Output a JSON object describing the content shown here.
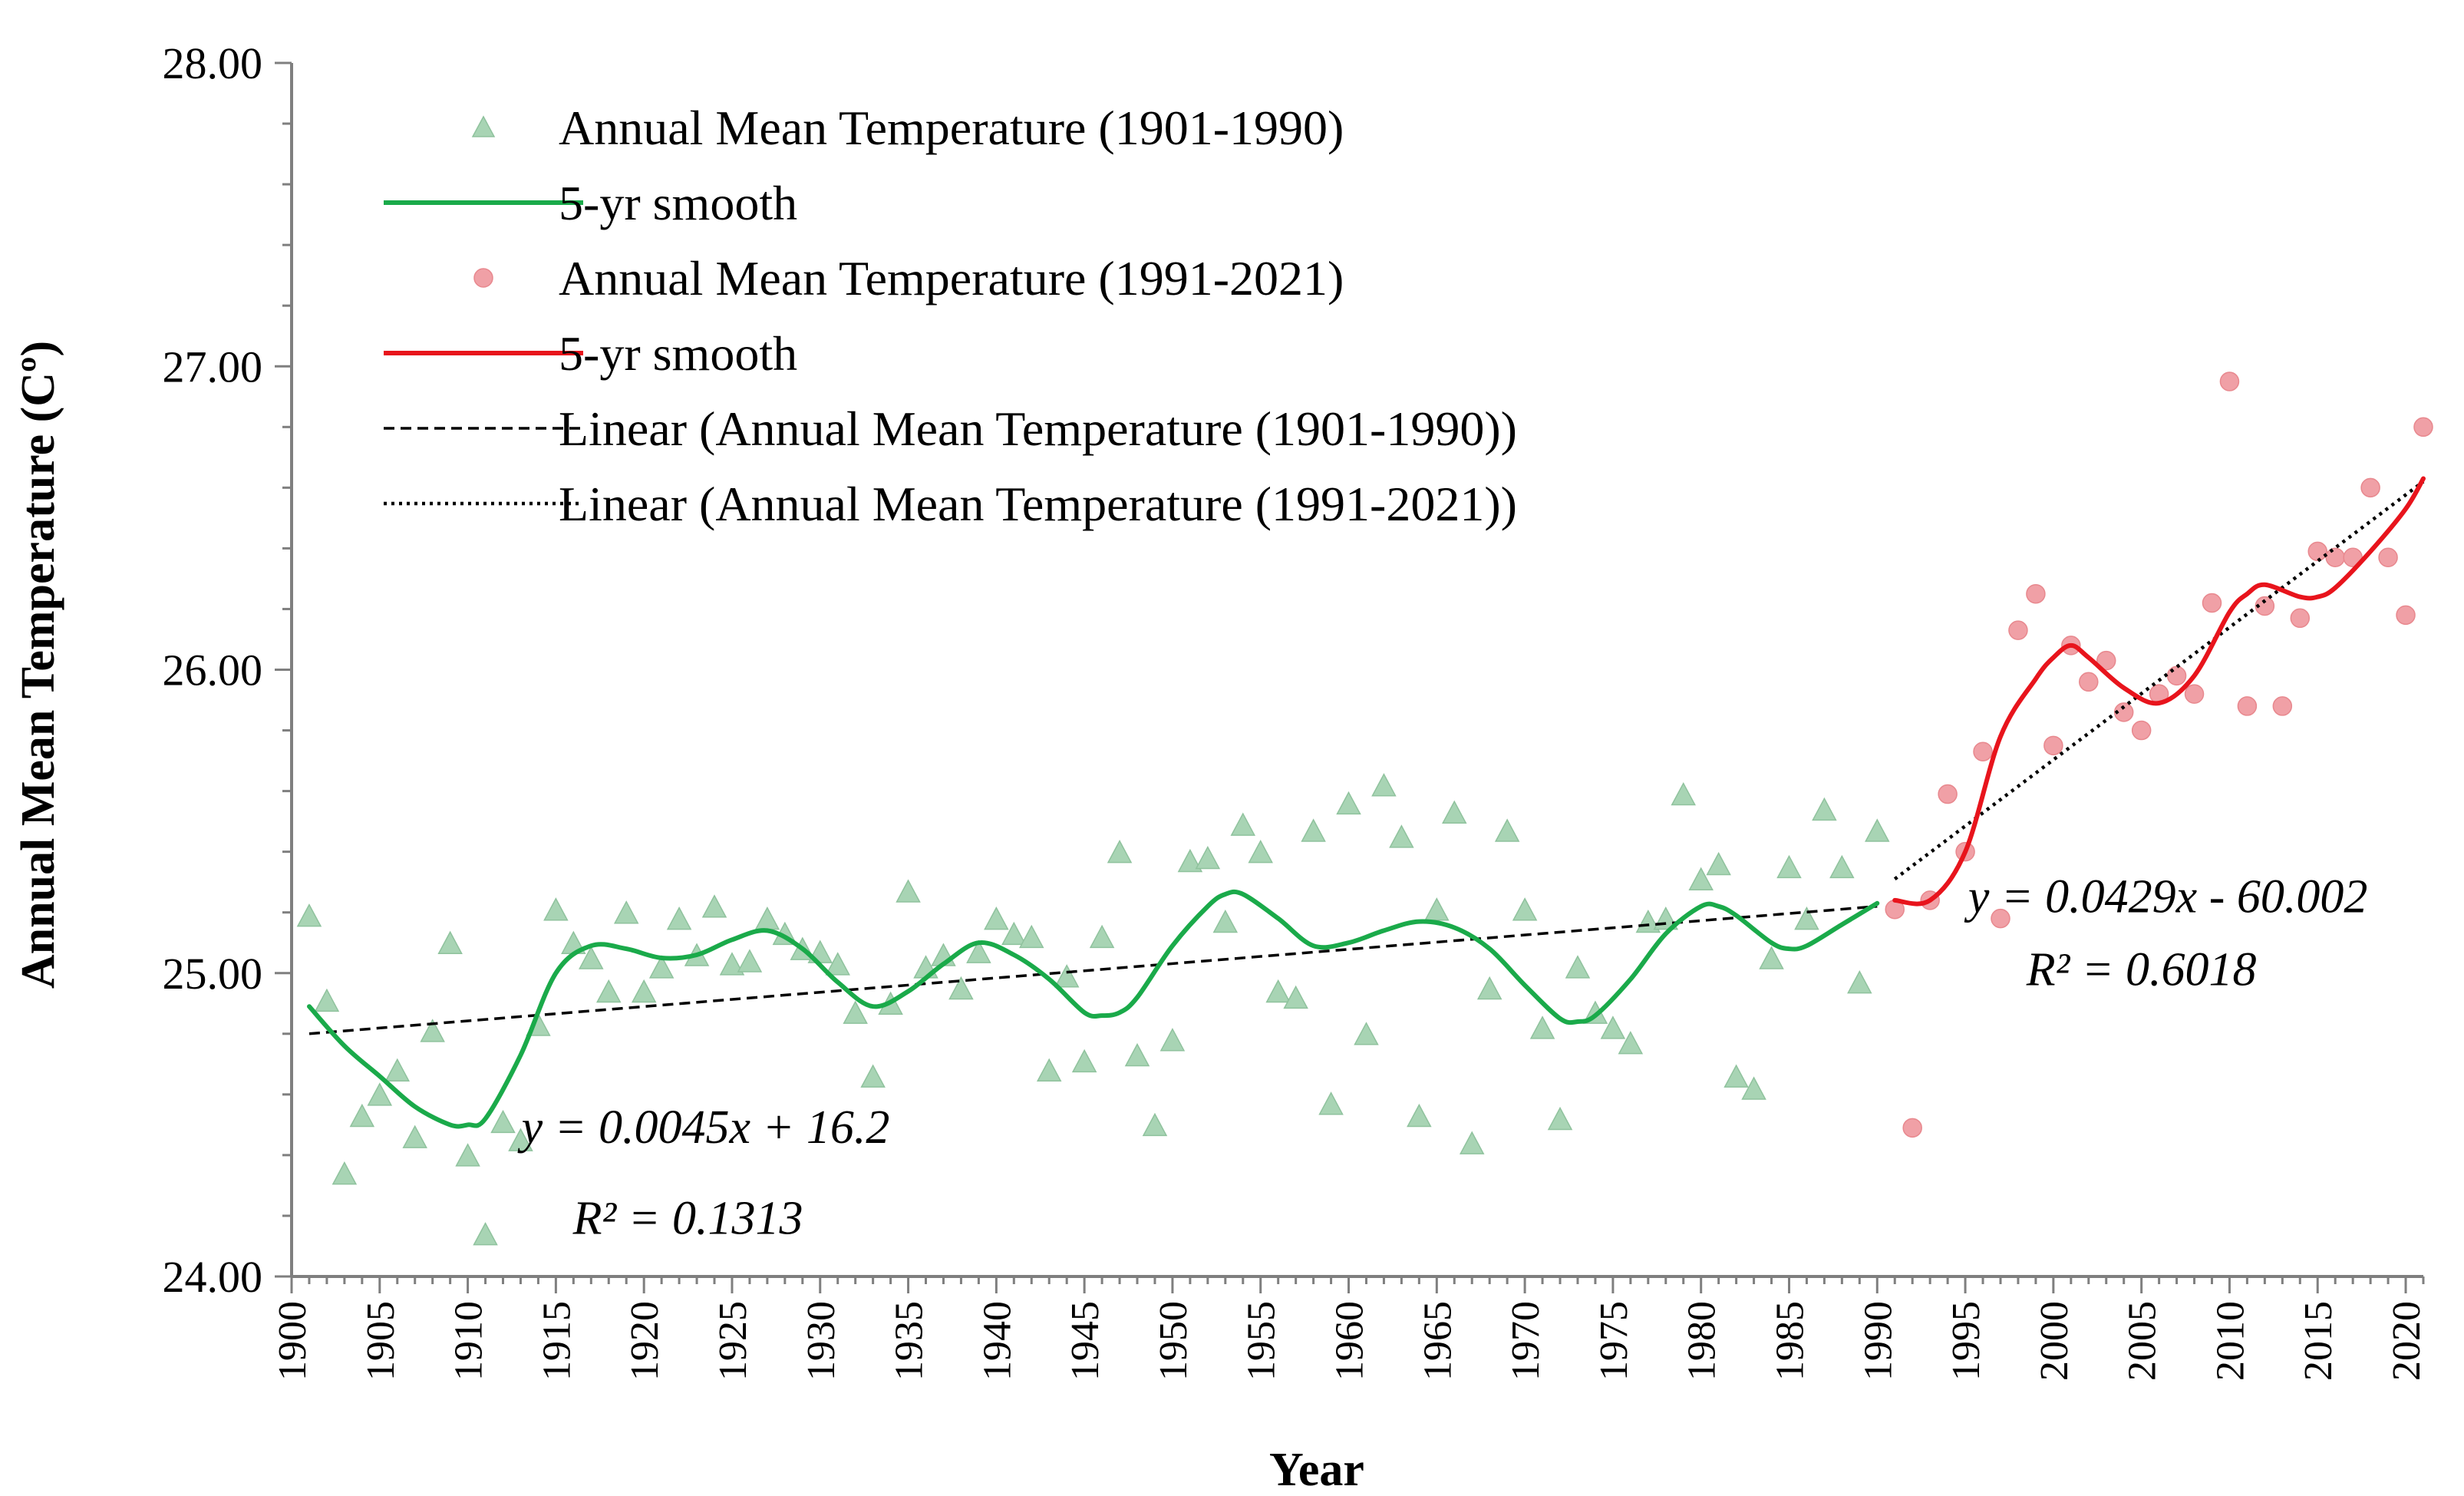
{
  "chart_data": {
    "type": "scatter",
    "xlabel": "Year",
    "ylabel": "Annual Mean Temperature (Cº)",
    "xlim": [
      1900,
      2021
    ],
    "ylim": [
      24.0,
      28.0
    ],
    "x_ticks": [
      "1900",
      "1905",
      "1910",
      "1915",
      "1920",
      "1925",
      "1930",
      "1935",
      "1940",
      "1945",
      "1950",
      "1955",
      "1960",
      "1965",
      "1970",
      "1975",
      "1980",
      "1985",
      "1990",
      "1995",
      "2000",
      "2005",
      "2010",
      "2015",
      "2020"
    ],
    "y_ticks": [
      "24.00",
      "25.00",
      "26.00",
      "27.00",
      "28.00"
    ],
    "legend": {
      "position": "top-left",
      "entries": [
        "Annual Mean Temperature (1901-1990)",
        "5-yr smooth",
        "Annual Mean Temperature (1991-2021)",
        "5-yr smooth",
        "Linear (Annual Mean Temperature (1901-1990))",
        "Linear (Annual Mean Temperature (1991-2021))"
      ]
    },
    "colors": {
      "green_marker": "#a8d4b4",
      "green_line": "#1aaa4a",
      "red_marker": "#f0a0a6",
      "red_line": "#e8141c",
      "trend": "#000000"
    },
    "series": [
      {
        "name": "Annual Mean Temperature (1901-1990)",
        "marker": "triangle",
        "x": [
          1901,
          1902,
          1903,
          1904,
          1905,
          1906,
          1907,
          1908,
          1909,
          1910,
          1911,
          1912,
          1913,
          1914,
          1915,
          1916,
          1917,
          1918,
          1919,
          1920,
          1921,
          1922,
          1923,
          1924,
          1925,
          1926,
          1927,
          1928,
          1929,
          1930,
          1931,
          1932,
          1933,
          1934,
          1935,
          1936,
          1937,
          1938,
          1939,
          1940,
          1941,
          1942,
          1943,
          1944,
          1945,
          1946,
          1947,
          1948,
          1949,
          1950,
          1951,
          1952,
          1953,
          1954,
          1955,
          1956,
          1957,
          1958,
          1959,
          1960,
          1961,
          1962,
          1963,
          1964,
          1965,
          1966,
          1967,
          1968,
          1969,
          1970,
          1971,
          1972,
          1973,
          1974,
          1975,
          1976,
          1977,
          1978,
          1979,
          1980,
          1981,
          1982,
          1983,
          1984,
          1985,
          1986,
          1987,
          1988,
          1989,
          1990
        ],
        "y": [
          25.19,
          24.91,
          24.34,
          24.53,
          24.6,
          24.68,
          24.46,
          24.81,
          25.1,
          24.4,
          24.14,
          24.51,
          24.45,
          24.83,
          25.21,
          25.1,
          25.05,
          24.94,
          25.2,
          24.94,
          25.02,
          25.18,
          25.06,
          25.22,
          25.03,
          25.04,
          25.18,
          25.13,
          25.08,
          25.07,
          25.03,
          24.87,
          24.66,
          24.9,
          25.27,
          25.02,
          25.06,
          24.95,
          25.07,
          25.18,
          25.13,
          25.12,
          24.68,
          24.99,
          24.71,
          25.12,
          25.4,
          24.73,
          24.5,
          24.78,
          25.37,
          25.38,
          25.17,
          25.49,
          25.4,
          24.94,
          24.92,
          25.47,
          24.57,
          25.56,
          24.8,
          25.62,
          25.45,
          24.53,
          25.21,
          25.53,
          24.44,
          24.95,
          25.47,
          25.21,
          24.82,
          24.52,
          25.02,
          24.87,
          24.82,
          24.77,
          25.17,
          25.18,
          25.59,
          25.31,
          25.36,
          24.66,
          24.62,
          25.05,
          25.35,
          25.18,
          25.54,
          25.35,
          24.97,
          25.47
        ]
      },
      {
        "name": "5-yr smooth",
        "x": [
          1901,
          1903,
          1905,
          1907,
          1909,
          1910,
          1911,
          1913,
          1915,
          1917,
          1919,
          1921,
          1923,
          1925,
          1927,
          1929,
          1931,
          1933,
          1935,
          1937,
          1939,
          1941,
          1943,
          1945,
          1946,
          1947,
          1948,
          1950,
          1952,
          1953,
          1954,
          1956,
          1958,
          1960,
          1962,
          1964,
          1966,
          1968,
          1970,
          1972,
          1973,
          1974,
          1976,
          1978,
          1980,
          1981,
          1982,
          1984,
          1985,
          1986,
          1988,
          1990
        ],
        "y": [
          24.89,
          24.76,
          24.66,
          24.56,
          24.5,
          24.5,
          24.52,
          24.73,
          25.0,
          25.09,
          25.08,
          25.05,
          25.06,
          25.11,
          25.14,
          25.08,
          24.97,
          24.89,
          24.94,
          25.03,
          25.1,
          25.06,
          24.98,
          24.87,
          24.86,
          24.87,
          24.92,
          25.09,
          25.22,
          25.26,
          25.26,
          25.18,
          25.09,
          25.1,
          25.14,
          25.17,
          25.15,
          25.08,
          24.96,
          24.85,
          24.84,
          24.86,
          24.98,
          25.13,
          25.22,
          25.22,
          25.19,
          25.1,
          25.08,
          25.09,
          25.16,
          25.23
        ]
      },
      {
        "name": "Annual Mean Temperature (1991-2021)",
        "marker": "circle",
        "x": [
          1991,
          1992,
          1993,
          1994,
          1995,
          1996,
          1997,
          1998,
          1999,
          2000,
          2001,
          2002,
          2003,
          2004,
          2005,
          2006,
          2007,
          2008,
          2009,
          2010,
          2011,
          2012,
          2013,
          2014,
          2015,
          2016,
          2017,
          2018,
          2019,
          2020,
          2021
        ],
        "y": [
          25.21,
          24.49,
          25.24,
          25.59,
          25.4,
          25.73,
          25.18,
          26.13,
          26.25,
          25.75,
          26.08,
          25.96,
          26.03,
          25.86,
          25.8,
          25.92,
          25.98,
          25.92,
          26.22,
          26.95,
          25.88,
          26.21,
          25.88,
          26.17,
          26.39,
          26.37,
          26.37,
          26.6,
          26.37,
          26.18,
          26.8
        ]
      },
      {
        "name": "5-yr smooth",
        "x": [
          1991,
          1993,
          1995,
          1997,
          1999,
          2000,
          2001,
          2002,
          2004,
          2006,
          2008,
          2010,
          2011,
          2012,
          2014,
          2015,
          2016,
          2018,
          2020,
          2021
        ],
        "y": [
          25.24,
          25.24,
          25.4,
          25.78,
          25.97,
          26.04,
          26.08,
          26.04,
          25.94,
          25.89,
          25.98,
          26.19,
          26.25,
          26.28,
          26.24,
          26.24,
          26.27,
          26.39,
          26.53,
          26.63
        ]
      },
      {
        "name": "Linear (Annual Mean Temperature (1901-1990))",
        "style": "dashed",
        "x": [
          1901,
          1990
        ],
        "y": [
          24.8,
          25.22
        ]
      },
      {
        "name": "Linear (Annual Mean Temperature (1991-2021))",
        "style": "dotted",
        "x": [
          1991,
          2021
        ],
        "y": [
          25.31,
          26.62
        ]
      }
    ],
    "annotations": [
      {
        "text": "y = 0.0045x + 16.2",
        "x": 1923.5,
        "y": 24.44
      },
      {
        "text": "R² = 0.1313",
        "x": 1922.5,
        "y": 24.14
      },
      {
        "text": "y = 0.0429x - 60.002",
        "x": 2006.5,
        "y": 25.2
      },
      {
        "text": "R² = 0.6018",
        "x": 2005.0,
        "y": 24.96
      }
    ]
  }
}
